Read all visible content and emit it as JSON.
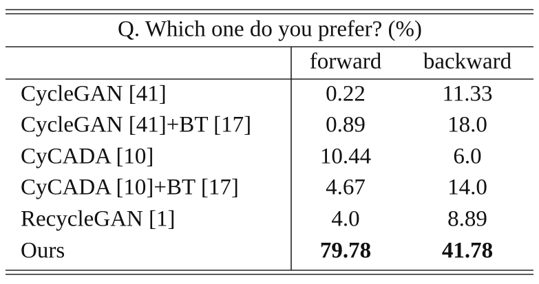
{
  "table": {
    "title": "Q. Which one do you prefer? (%)",
    "columns": [
      "forward",
      "backward"
    ],
    "rows": [
      [
        "CycleGAN [41]",
        "0.22",
        "11.33"
      ],
      [
        "CycleGAN [41]+BT [17]",
        "0.89",
        "18.0"
      ],
      [
        "CyCADA [10]",
        "10.44",
        "6.0"
      ],
      [
        "CyCADA [10]+BT [17]",
        "4.67",
        "14.0"
      ],
      [
        "RecycleGAN [1]",
        "4.0",
        "8.89"
      ],
      [
        "Ours",
        "79.78",
        "41.78"
      ]
    ]
  }
}
